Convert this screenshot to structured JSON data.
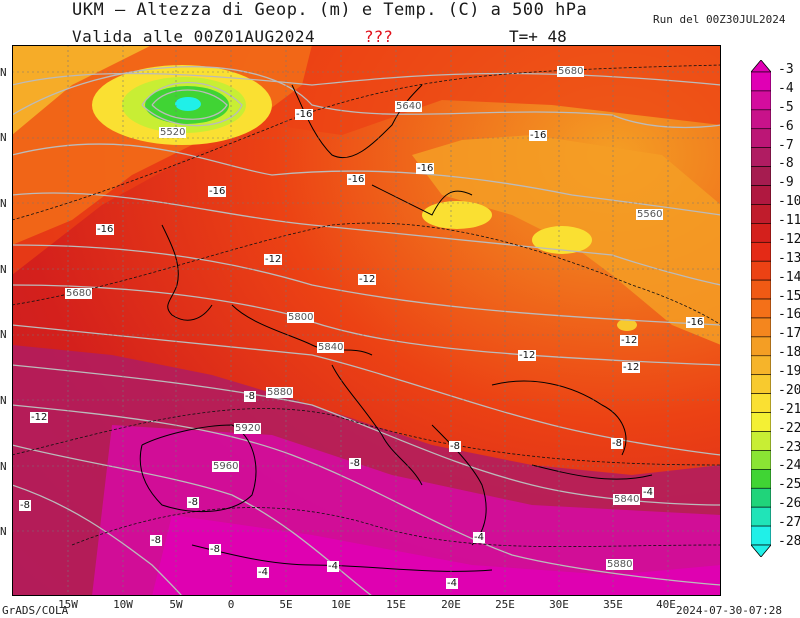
{
  "header": {
    "title": "UKM — Altezza di Geop. (m) e Temp. (C) a 500 hPa",
    "valid": "Valida alle 00Z01AUG2024",
    "qmarks": "???",
    "tplus": "T=+ 48",
    "run": "Run del 00Z30JUL2024"
  },
  "footer": {
    "left": "GrADS/COLA",
    "right": "2024-07-30-07:28"
  },
  "axes": {
    "lat_labels": [
      "N",
      "N",
      "N",
      "N",
      "N",
      "N",
      "N",
      "N"
    ],
    "lon_labels": [
      "15W",
      "10W",
      "5W",
      "0",
      "5E",
      "10E",
      "15E",
      "20E",
      "25E",
      "30E",
      "35E",
      "40E"
    ]
  },
  "colorbar": {
    "labels": [
      "-3",
      "-4",
      "-5",
      "-6",
      "-7",
      "-8",
      "-9",
      "-10",
      "-11",
      "-12",
      "-13",
      "-14",
      "-15",
      "-16",
      "-17",
      "-18",
      "-19",
      "-20",
      "-21",
      "-22",
      "-23",
      "-24",
      "-25",
      "-26",
      "-27",
      "-28"
    ],
    "colors": [
      "#e000b4",
      "#d40c9e",
      "#c8128a",
      "#bc1676",
      "#b01c62",
      "#a61c50",
      "#b01840",
      "#c01c2c",
      "#d4201c",
      "#e42a16",
      "#ec4214",
      "#f05a14",
      "#f47018",
      "#f4861e",
      "#f49e24",
      "#f6b42a",
      "#f8ca2e",
      "#fae032",
      "#f4f034",
      "#c8ee34",
      "#8ae434",
      "#40d434",
      "#20d47a",
      "#20e4b8",
      "#20f0e8"
    ]
  },
  "map_labels": {
    "geopotential": [
      "5680",
      "5640",
      "5520",
      "5560",
      "5680",
      "5800",
      "5840",
      "5880",
      "5920",
      "5960",
      "5840",
      "5880"
    ],
    "temperature": [
      "-16",
      "-16",
      "-16",
      "-16",
      "-16",
      "-16",
      "-16",
      "-12",
      "-12",
      "-12",
      "-12",
      "-12",
      "-12",
      "-8",
      "-8",
      "-8",
      "-8",
      "-8",
      "-8",
      "-8",
      "-8",
      "-4",
      "-4",
      "-4",
      "-4",
      "-4",
      "-16",
      "-16"
    ]
  }
}
